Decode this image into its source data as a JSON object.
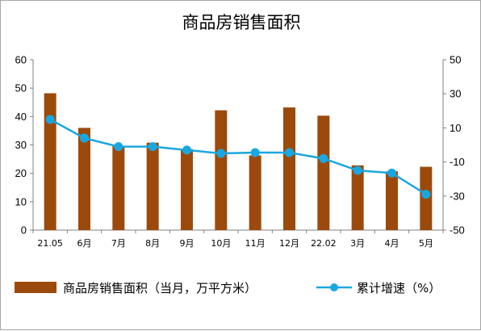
{
  "chart_data": {
    "type": "bar",
    "title": "商品房销售面积",
    "categories": [
      "21.05",
      "6月",
      "7月",
      "8月",
      "9月",
      "10月",
      "11月",
      "12月",
      "22.02",
      "3月",
      "4月",
      "5月"
    ],
    "series": [
      {
        "name": "商品房销售面积（当月，万平方米）",
        "type": "bar",
        "axis": "left",
        "color": "#9c4a0c",
        "values": [
          48.2,
          36.0,
          29.5,
          30.8,
          28.5,
          42.2,
          26.3,
          43.2,
          40.3,
          22.8,
          20.7,
          22.3
        ]
      },
      {
        "name": "累计增速（%）",
        "type": "line",
        "axis": "right",
        "color": "#1aa7e0",
        "values": [
          15,
          4,
          -1,
          -1,
          -3,
          -5,
          -4.5,
          -4.5,
          -8,
          -15,
          -16.5,
          -29
        ]
      }
    ],
    "y_left": {
      "min": 0,
      "max": 60,
      "ticks": [
        0,
        10,
        20,
        30,
        40,
        50,
        60
      ]
    },
    "y_right": {
      "min": -50,
      "max": 50,
      "ticks": [
        -50,
        -30,
        -10,
        10,
        30,
        50
      ]
    },
    "grid": false,
    "legend_position": "bottom"
  }
}
